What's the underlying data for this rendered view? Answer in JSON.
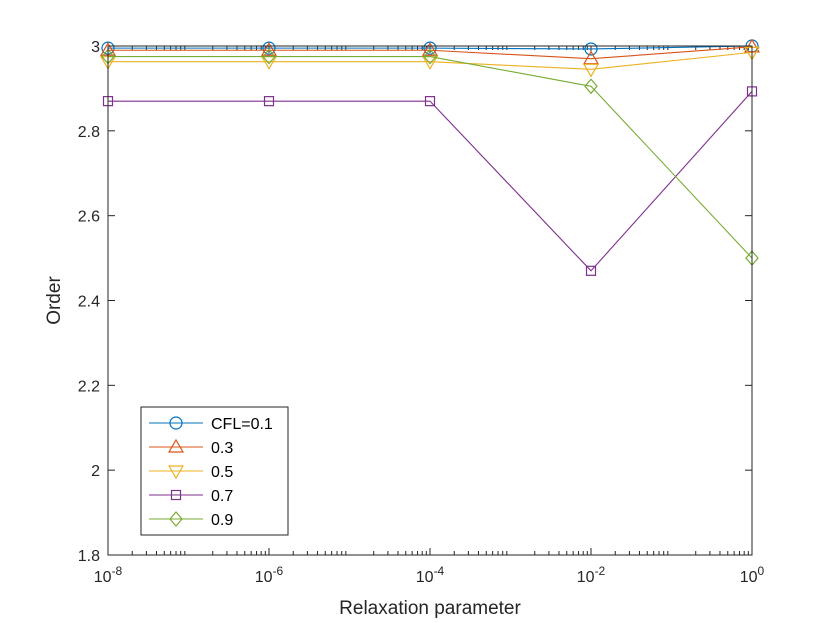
{
  "chart_data": {
    "type": "line",
    "title": "",
    "xlabel": "Relaxation parameter",
    "ylabel": "Order",
    "xscale": "log",
    "xlim": [
      1e-08,
      1
    ],
    "ylim": [
      1.8,
      3.0
    ],
    "x": [
      1e-08,
      1e-06,
      0.0001,
      0.01,
      1
    ],
    "x_ticks": [
      {
        "value": 1e-08,
        "base": "10",
        "exp": "-8"
      },
      {
        "value": 1e-06,
        "base": "10",
        "exp": "-6"
      },
      {
        "value": 0.0001,
        "base": "10",
        "exp": "-4"
      },
      {
        "value": 0.01,
        "base": "10",
        "exp": "-2"
      },
      {
        "value": 1,
        "base": "10",
        "exp": "0"
      }
    ],
    "y_ticks": [
      {
        "value": 1.8,
        "label": "1.8"
      },
      {
        "value": 2.0,
        "label": "2"
      },
      {
        "value": 2.2,
        "label": "2.2"
      },
      {
        "value": 2.4,
        "label": "2.4"
      },
      {
        "value": 2.6,
        "label": "2.6"
      },
      {
        "value": 2.8,
        "label": "2.8"
      },
      {
        "value": 3.0,
        "label": "3"
      }
    ],
    "grid": false,
    "legend_position": "bottom-left",
    "series": [
      {
        "name": "CFL=0.1",
        "marker": "circle",
        "color": "#0072BD",
        "values": [
          2.995,
          2.995,
          2.995,
          2.993,
          3.0
        ]
      },
      {
        "name": "0.3",
        "marker": "triangle-up",
        "color": "#D95319",
        "values": [
          2.99,
          2.99,
          2.99,
          2.97,
          2.998
        ]
      },
      {
        "name": "0.5",
        "marker": "triangle-down",
        "color": "#EDB120",
        "values": [
          2.963,
          2.963,
          2.963,
          2.945,
          2.985
        ]
      },
      {
        "name": "0.7",
        "marker": "square",
        "color": "#7E2F8E",
        "values": [
          2.87,
          2.87,
          2.87,
          2.47,
          2.893
        ]
      },
      {
        "name": "0.9",
        "marker": "diamond",
        "color": "#77AC30",
        "values": [
          2.975,
          2.975,
          2.975,
          2.905,
          2.5
        ]
      }
    ]
  }
}
